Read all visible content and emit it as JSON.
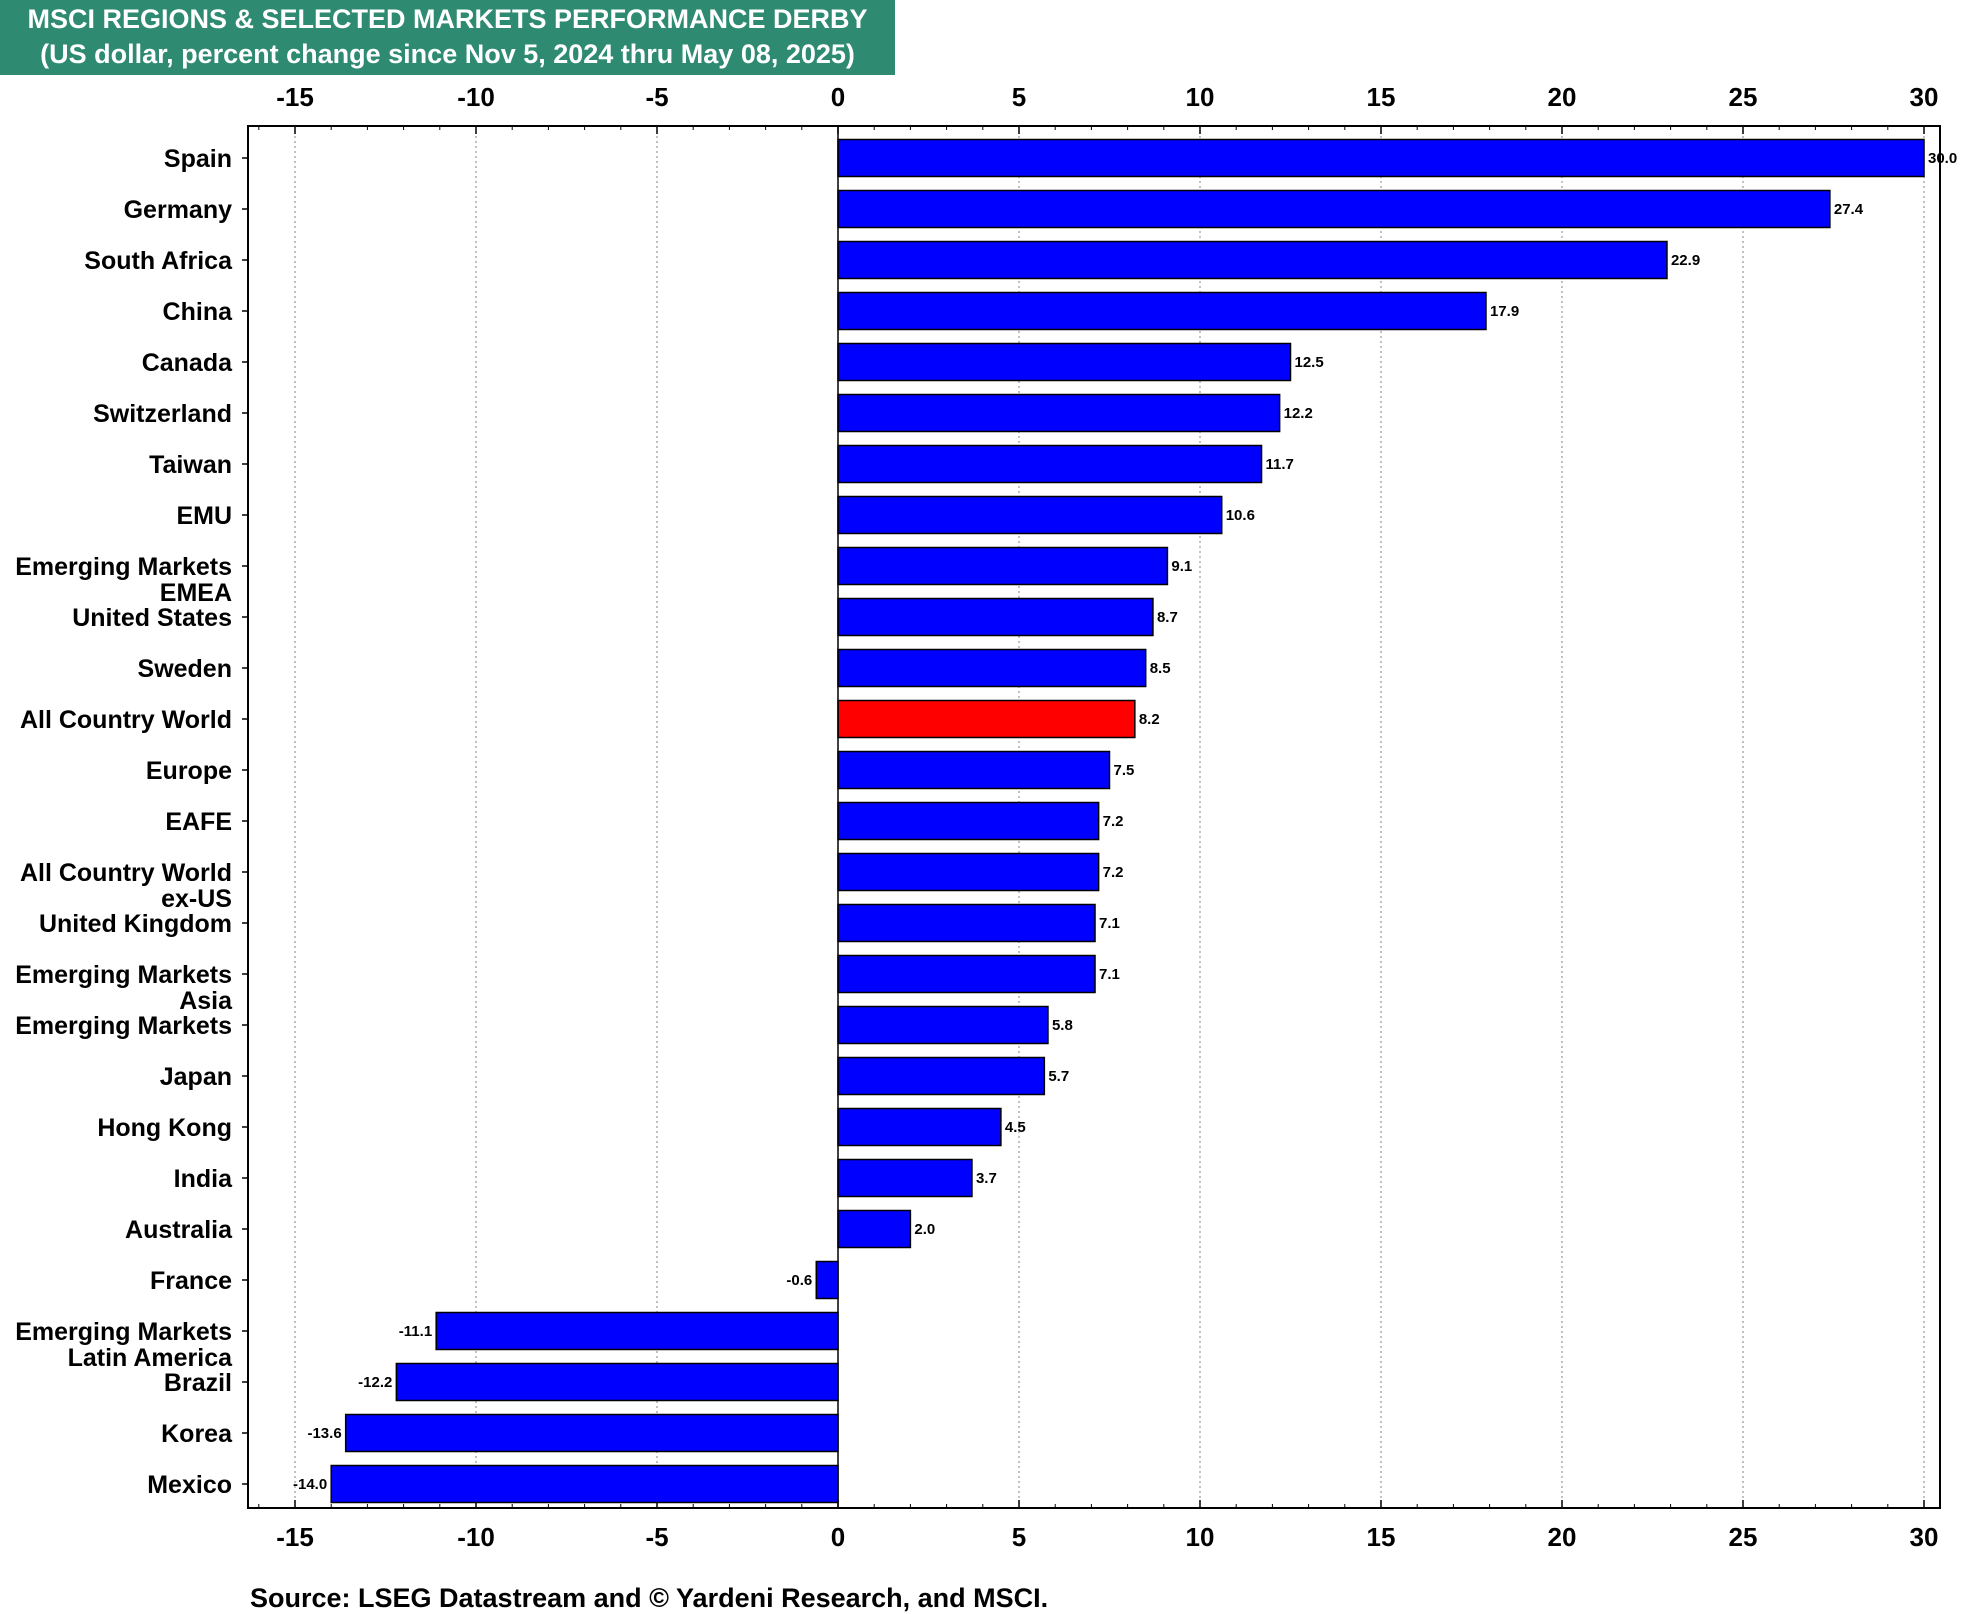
{
  "title": {
    "line1": "MSCI REGIONS & SELECTED MARKETS PERFORMANCE DERBY",
    "line2": "(US dollar, percent change since Nov 5, 2024 thru May 08, 2025)"
  },
  "source": "Source: LSEG Datastream and © Yardeni Research, and MSCI.",
  "colors": {
    "bar": "#0000ff",
    "highlight": "#ff0000",
    "header": "#2e8b72"
  },
  "chart_data": {
    "type": "bar",
    "orientation": "horizontal",
    "title": "MSCI REGIONS & SELECTED MARKETS PERFORMANCE DERBY",
    "subtitle": "(US dollar, percent change since Nov 5, 2024 thru May 08, 2025)",
    "xlim": [
      -16.5,
      31.5
    ],
    "xticks": [
      -15,
      -10,
      -5,
      0,
      5,
      10,
      15,
      20,
      25,
      30
    ],
    "grid": "vertical dotted",
    "highlighted_category": "All Country World",
    "categories": [
      [
        "Spain"
      ],
      [
        "Germany"
      ],
      [
        "South Africa"
      ],
      [
        "China"
      ],
      [
        "Canada"
      ],
      [
        "Switzerland"
      ],
      [
        "Taiwan"
      ],
      [
        "EMU"
      ],
      [
        "Emerging Markets",
        "EMEA"
      ],
      [
        "United States"
      ],
      [
        "Sweden"
      ],
      [
        "All Country World"
      ],
      [
        "Europe"
      ],
      [
        "EAFE"
      ],
      [
        "All Country World",
        "ex-US"
      ],
      [
        "United Kingdom"
      ],
      [
        "Emerging Markets",
        "Asia"
      ],
      [
        "Emerging Markets"
      ],
      [
        "Japan"
      ],
      [
        "Hong Kong"
      ],
      [
        "India"
      ],
      [
        "Australia"
      ],
      [
        "France"
      ],
      [
        "Emerging Markets",
        "Latin America"
      ],
      [
        "Brazil"
      ],
      [
        "Korea"
      ],
      [
        "Mexico"
      ]
    ],
    "values": [
      30.0,
      27.4,
      22.9,
      17.9,
      12.5,
      12.2,
      11.7,
      10.6,
      9.1,
      8.7,
      8.5,
      8.2,
      7.5,
      7.2,
      7.2,
      7.1,
      7.1,
      5.8,
      5.7,
      4.5,
      3.7,
      2.0,
      -0.6,
      -11.1,
      -12.2,
      -13.6,
      -14.0
    ],
    "value_labels": [
      "30.0",
      "27.4",
      "22.9",
      "17.9",
      "12.5",
      "12.2",
      "11.7",
      "10.6",
      "9.1",
      "8.7",
      "8.5",
      "8.2",
      "7.5",
      "7.2",
      "7.2",
      "7.1",
      "7.1",
      "5.8",
      "5.7",
      "4.5",
      "3.7",
      "2.0",
      "-0.6",
      "-11.1",
      "-12.2",
      "-13.6",
      "-14.0"
    ]
  }
}
